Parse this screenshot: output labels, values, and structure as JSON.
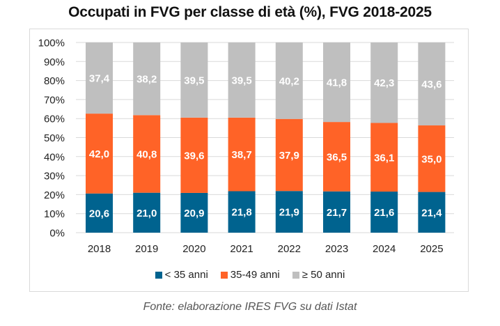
{
  "chart_data": {
    "type": "bar",
    "stacked": true,
    "title": "Occupati in FVG per classe di età (%), FVG 2018-2025",
    "categories": [
      "2018",
      "2019",
      "2020",
      "2021",
      "2022",
      "2023",
      "2024",
      "2025"
    ],
    "series": [
      {
        "name": "< 35 anni",
        "color": "#00638f",
        "values": [
          20.6,
          21.0,
          20.9,
          21.8,
          21.9,
          21.7,
          21.6,
          21.4
        ],
        "labels": [
          "20,6",
          "21,0",
          "20,9",
          "21,8",
          "21,9",
          "21,7",
          "21,6",
          "21,4"
        ]
      },
      {
        "name": "35-49 anni",
        "color": "#ff6327",
        "values": [
          42.0,
          40.8,
          39.6,
          38.7,
          37.9,
          36.5,
          36.1,
          35.0
        ],
        "labels": [
          "42,0",
          "40,8",
          "39,6",
          "38,7",
          "37,9",
          "36,5",
          "36,1",
          "35,0"
        ]
      },
      {
        "name": "≥ 50 anni",
        "color": "#bfbfbf",
        "values": [
          37.4,
          38.2,
          39.5,
          39.5,
          40.2,
          41.8,
          42.3,
          43.6
        ],
        "labels": [
          "37,4",
          "38,2",
          "39,5",
          "39,5",
          "40,2",
          "41,8",
          "42,3",
          "43,6"
        ]
      }
    ],
    "ylim": [
      0,
      100
    ],
    "yticks": [
      "0%",
      "10%",
      "20%",
      "30%",
      "40%",
      "50%",
      "60%",
      "70%",
      "80%",
      "90%",
      "100%"
    ],
    "grid": true,
    "legend": "bottom",
    "xlabel": "",
    "ylabel": ""
  },
  "source": "Fonte: elaborazione IRES FVG su dati Istat"
}
